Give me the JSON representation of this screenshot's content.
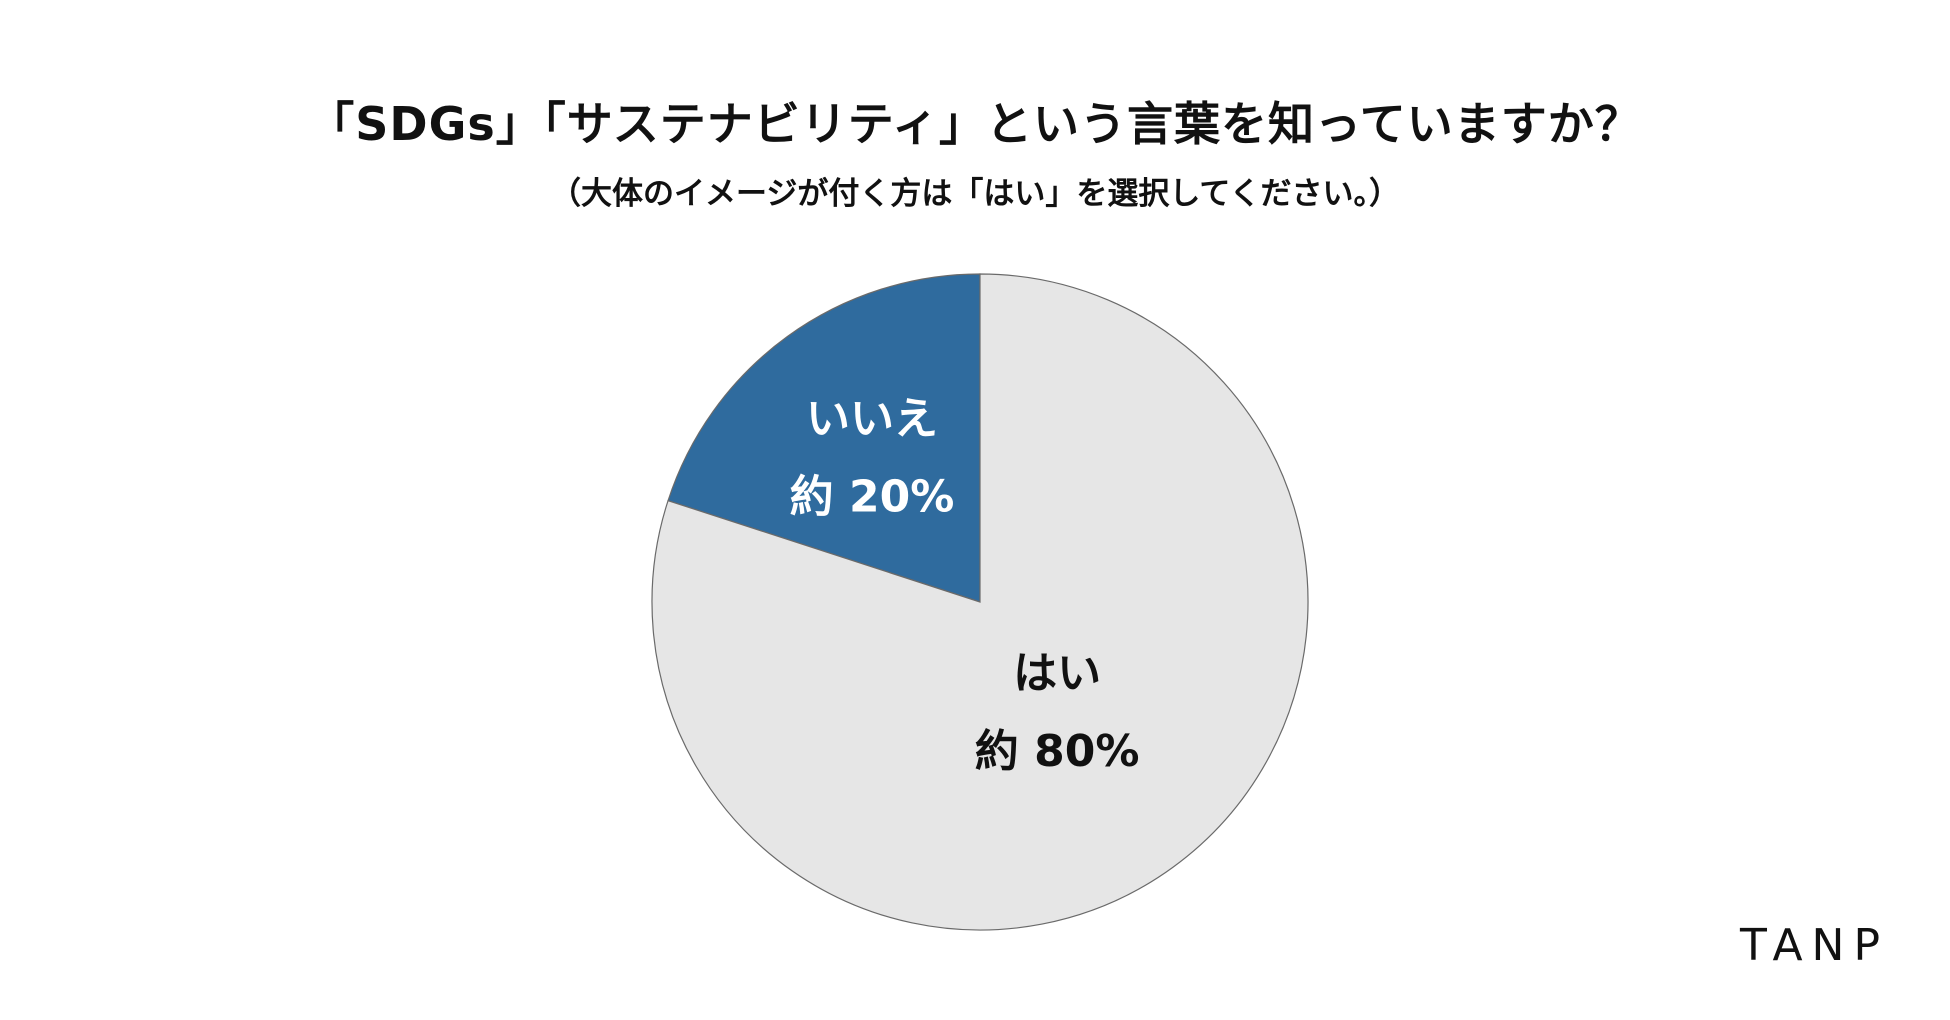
{
  "header": {
    "title": "「SDGs」「サステナビリティ」という言葉を知っていますか？",
    "subtitle": "（大体のイメージが付く方は「はい」を選択してください。）"
  },
  "brand": {
    "logo_text": "TANP"
  },
  "chart_data": {
    "type": "pie",
    "title": "「SDGs」「サステナビリティ」という言葉を知っていますか？",
    "subtitle": "（大体のイメージが付く方は「はい」を選択してください。）",
    "start_angle_deg": -90,
    "direction": "counterclockwise",
    "slices": [
      {
        "label": "いいえ",
        "value": 20,
        "value_label": "約 20%",
        "color": "#2f6b9e",
        "text_color": "#ffffff"
      },
      {
        "label": "はい",
        "value": 80,
        "value_label": "約 80%",
        "color": "#e6e6e6",
        "text_color": "#111111"
      }
    ],
    "legend": "none"
  }
}
